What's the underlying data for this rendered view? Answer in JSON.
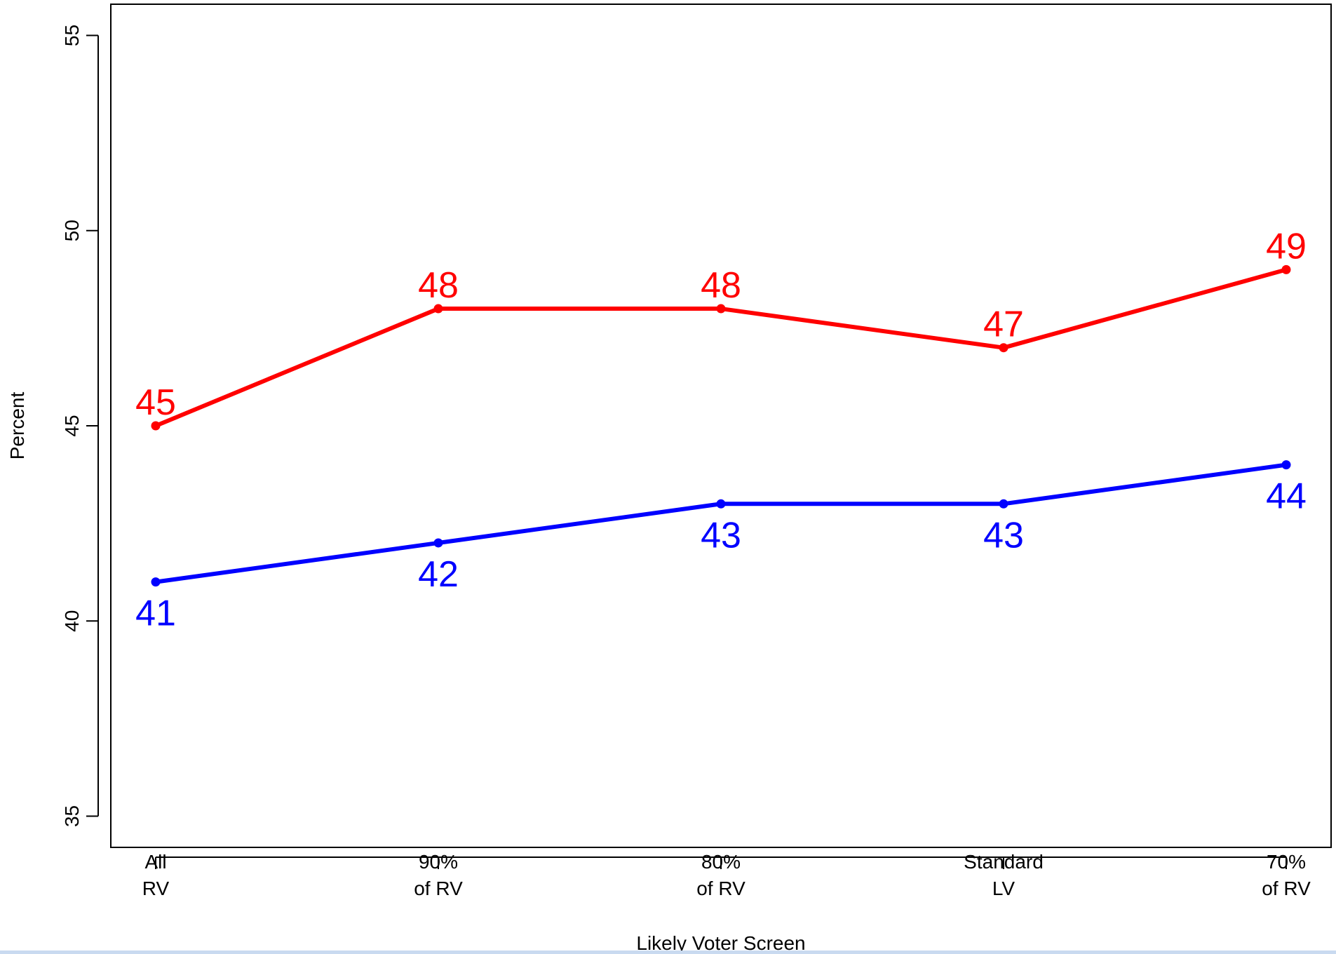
{
  "chart_data": {
    "type": "line",
    "categories": [
      [
        "All",
        "RV"
      ],
      [
        "90%",
        "of RV"
      ],
      [
        "80%",
        "of RV"
      ],
      [
        "Standard",
        "LV"
      ],
      [
        "70%",
        "of RV"
      ]
    ],
    "series": [
      {
        "color": "#ff0000",
        "values": [
          45,
          48,
          48,
          47,
          49
        ],
        "label_position": "above"
      },
      {
        "color": "#0000ff",
        "values": [
          41,
          42,
          43,
          43,
          44
        ],
        "label_position": "below"
      }
    ],
    "title": "",
    "xlabel": "Likely Voter Screen",
    "ylabel": "Percent",
    "ylim": [
      34.2,
      55.8
    ],
    "yticks": [
      35,
      40,
      45,
      50,
      55
    ],
    "grid": false,
    "legend": "none"
  }
}
